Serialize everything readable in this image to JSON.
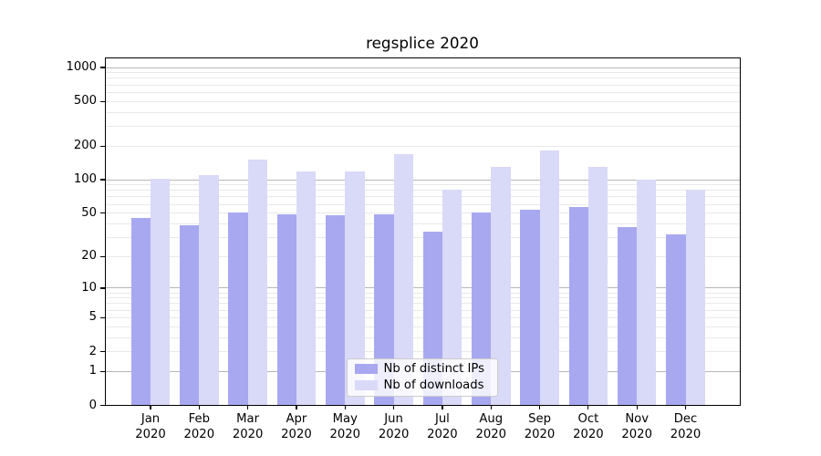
{
  "title": "regsplice 2020",
  "colors": {
    "bar_ips": "#a8a8f0",
    "bar_downloads": "#d9d9f8",
    "grid_minor": "#e9e9e9",
    "grid_major": "#b6b6b6",
    "frame": "#000000",
    "legend_border": "#cccccc",
    "background": "#ffffff"
  },
  "legend": {
    "items": [
      {
        "label": "Nb of distinct IPs"
      },
      {
        "label": "Nb of downloads"
      }
    ]
  },
  "chart_data": {
    "type": "bar",
    "title": "regsplice 2020",
    "categories": [
      "Jan 2020",
      "Feb 2020",
      "Mar 2020",
      "Apr 2020",
      "May 2020",
      "Jun 2020",
      "Jul 2020",
      "Aug 2020",
      "Sep 2020",
      "Oct 2020",
      "Nov 2020",
      "Dec 2020"
    ],
    "series": [
      {
        "name": "Nb of distinct IPs",
        "color": "#a8a8f0",
        "values": [
          45,
          39,
          51,
          49,
          48,
          49,
          34,
          51,
          54,
          57,
          37,
          32
        ]
      },
      {
        "name": "Nb of downloads",
        "color": "#d9d9f8",
        "values": [
          102,
          109,
          151,
          119,
          119,
          169,
          81,
          131,
          182,
          129,
          101,
          81
        ]
      }
    ],
    "xlabel": "",
    "ylabel": "",
    "yscale": "log10(value+1)",
    "y_ticks": [
      0,
      1,
      2,
      5,
      10,
      20,
      50,
      100,
      200,
      500,
      1000
    ],
    "y_minor_gridlines": [
      2,
      3,
      4,
      5,
      6,
      7,
      8,
      9,
      20,
      30,
      40,
      50,
      60,
      70,
      80,
      90,
      200,
      300,
      400,
      500,
      600,
      700,
      800,
      900
    ],
    "y_major_gridlines": [
      1,
      10,
      100,
      1000
    ],
    "ylim": [
      0,
      1240
    ],
    "grid": true,
    "legend_position": "inside lower-center"
  }
}
